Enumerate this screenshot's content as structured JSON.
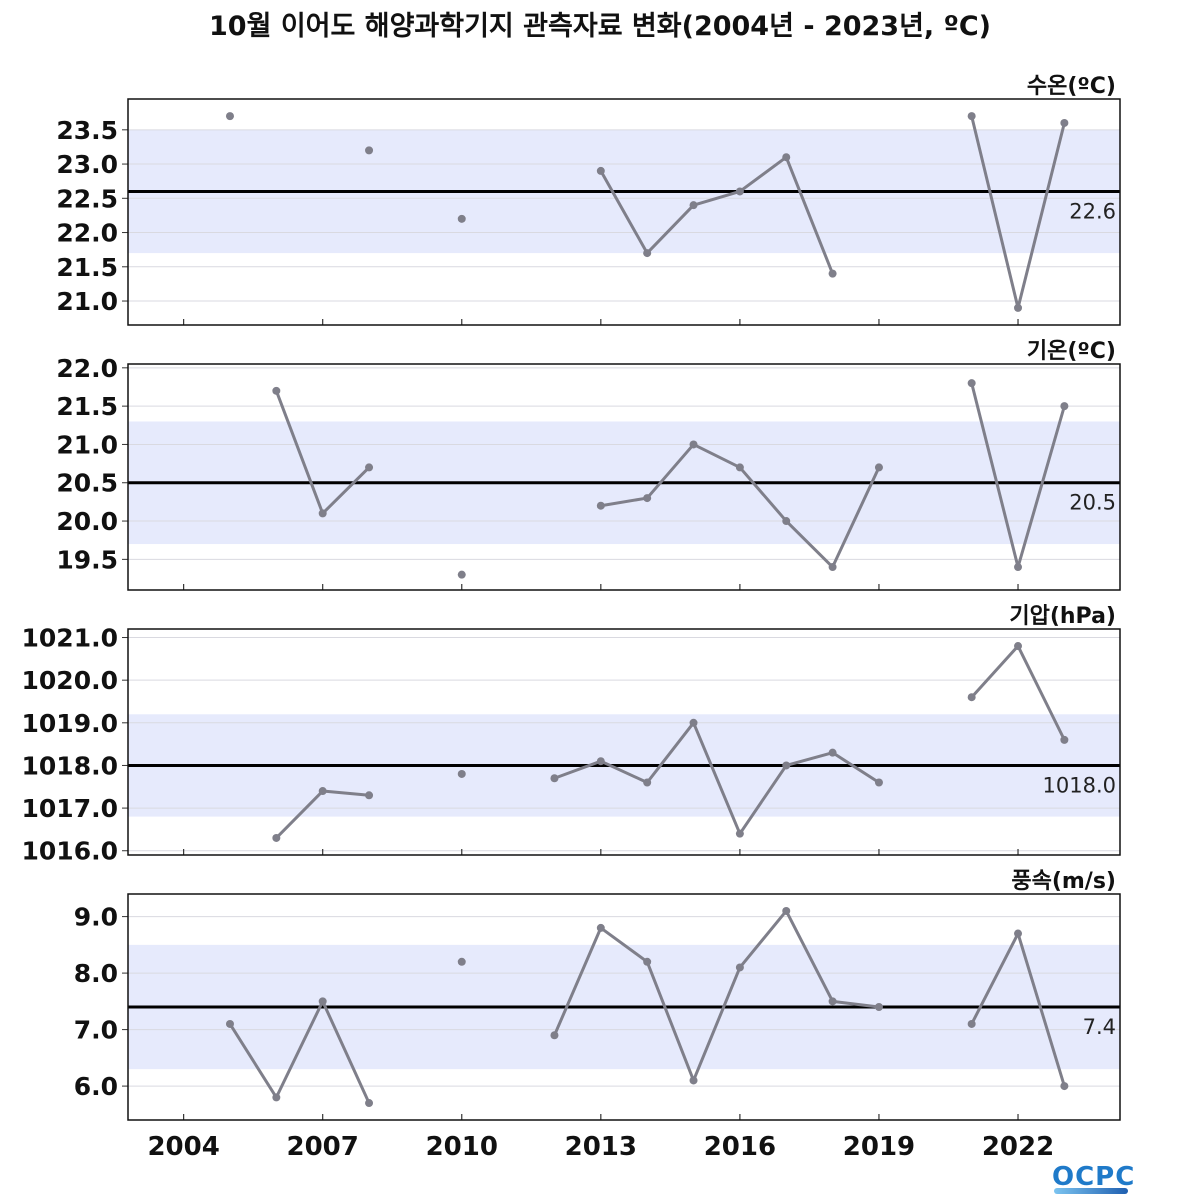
{
  "title": "10월 이어도 해양과학기지 관측자료 변화(2004년 - 2023년, ºC)",
  "logo_text": "OCPC",
  "colors": {
    "band": "#e6eafc",
    "mean_line": "#000000",
    "series_line": "#7f7f8a",
    "grid": "#d9d9e0"
  },
  "chart_data": [
    {
      "type": "line",
      "label": "수온(ºC)",
      "mean": 22.6,
      "mean_label": "22.6",
      "band": [
        21.7,
        23.5
      ],
      "ylim": [
        20.65,
        23.95
      ],
      "yticks": [
        21.0,
        21.5,
        22.0,
        22.5,
        23.0,
        23.5
      ],
      "ytick_labels": [
        "21.0",
        "21.5",
        "22.0",
        "22.5",
        "23.0",
        "23.5"
      ],
      "x": [
        2004,
        2005,
        2006,
        2007,
        2008,
        2009,
        2010,
        2011,
        2012,
        2013,
        2014,
        2015,
        2016,
        2017,
        2018,
        2019,
        2020,
        2021,
        2022,
        2023
      ],
      "values": [
        null,
        23.7,
        null,
        null,
        23.2,
        null,
        22.2,
        null,
        null,
        22.9,
        21.7,
        22.4,
        22.6,
        23.1,
        21.4,
        null,
        null,
        23.7,
        20.9,
        23.6
      ]
    },
    {
      "type": "line",
      "label": "기온(ºC)",
      "mean": 20.5,
      "mean_label": "20.5",
      "band": [
        19.7,
        21.3
      ],
      "ylim": [
        19.1,
        22.05
      ],
      "yticks": [
        19.5,
        20.0,
        20.5,
        21.0,
        21.5,
        22.0
      ],
      "ytick_labels": [
        "19.5",
        "20.0",
        "20.5",
        "21.0",
        "21.5",
        "22.0"
      ],
      "x": [
        2004,
        2005,
        2006,
        2007,
        2008,
        2009,
        2010,
        2011,
        2012,
        2013,
        2014,
        2015,
        2016,
        2017,
        2018,
        2019,
        2020,
        2021,
        2022,
        2023
      ],
      "values": [
        null,
        null,
        21.7,
        20.1,
        20.7,
        null,
        19.3,
        null,
        null,
        20.2,
        20.3,
        21.0,
        20.7,
        20.0,
        19.4,
        20.7,
        null,
        21.8,
        19.4,
        21.5
      ]
    },
    {
      "type": "line",
      "label": "기압(hPa)",
      "mean": 1018.0,
      "mean_label": "1018.0",
      "band": [
        1016.8,
        1019.2
      ],
      "ylim": [
        1015.9,
        1021.2
      ],
      "yticks": [
        1016.0,
        1017.0,
        1018.0,
        1019.0,
        1020.0,
        1021.0
      ],
      "ytick_labels": [
        "1016.0",
        "1017.0",
        "1018.0",
        "1019.0",
        "1020.0",
        "1021.0"
      ],
      "x": [
        2004,
        2005,
        2006,
        2007,
        2008,
        2009,
        2010,
        2011,
        2012,
        2013,
        2014,
        2015,
        2016,
        2017,
        2018,
        2019,
        2020,
        2021,
        2022,
        2023
      ],
      "values": [
        null,
        null,
        1016.3,
        1017.4,
        1017.3,
        null,
        1017.8,
        null,
        1017.7,
        1018.1,
        1017.6,
        1019.0,
        1016.4,
        1018.0,
        1018.3,
        1017.6,
        null,
        1019.6,
        1020.8,
        1018.6
      ]
    },
    {
      "type": "line",
      "label": "풍속(m/s)",
      "mean": 7.4,
      "mean_label": "7.4",
      "band": [
        6.3,
        8.5
      ],
      "ylim": [
        5.4,
        9.4
      ],
      "yticks": [
        6.0,
        7.0,
        8.0,
        9.0
      ],
      "ytick_labels": [
        "6.0",
        "7.0",
        "8.0",
        "9.0"
      ],
      "x": [
        2004,
        2005,
        2006,
        2007,
        2008,
        2009,
        2010,
        2011,
        2012,
        2013,
        2014,
        2015,
        2016,
        2017,
        2018,
        2019,
        2020,
        2021,
        2022,
        2023
      ],
      "values": [
        null,
        7.1,
        5.8,
        7.5,
        5.7,
        null,
        8.2,
        null,
        6.9,
        8.8,
        8.2,
        6.1,
        8.1,
        9.1,
        7.5,
        7.4,
        null,
        7.1,
        8.7,
        6.0
      ]
    }
  ],
  "xaxis": {
    "xlim": [
      2002.8,
      2024.2
    ],
    "ticks": [
      2004,
      2007,
      2010,
      2013,
      2016,
      2019,
      2022
    ],
    "tick_labels": [
      "2004",
      "2007",
      "2010",
      "2013",
      "2016",
      "2019",
      "2022"
    ]
  }
}
